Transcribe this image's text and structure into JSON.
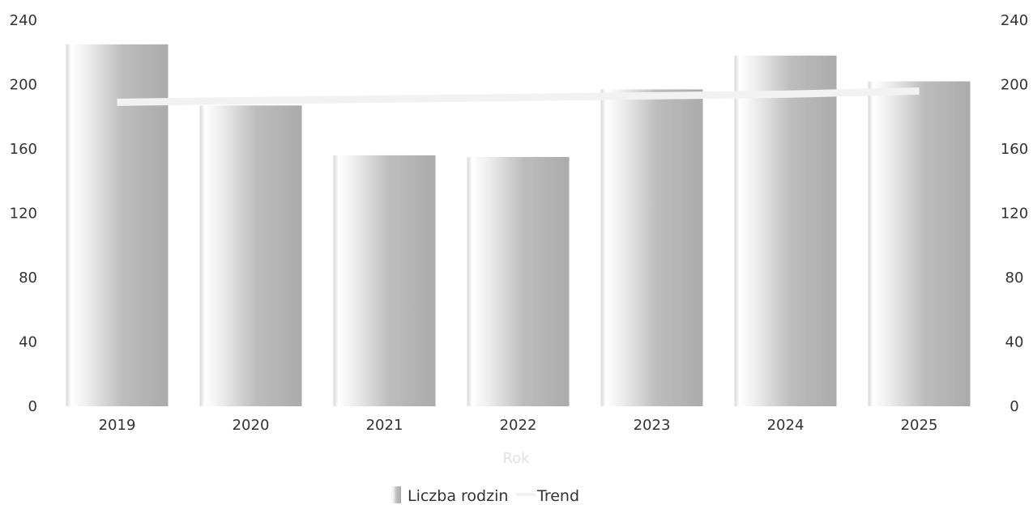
{
  "chart_data": {
    "type": "bar",
    "categories": [
      "2019",
      "2020",
      "2021",
      "2022",
      "2023",
      "2024",
      "2025"
    ],
    "series": [
      {
        "name": "Liczba rodzin",
        "type": "bar",
        "values": [
          225,
          187,
          156,
          155,
          197,
          218,
          202
        ]
      },
      {
        "name": "Trend",
        "type": "line",
        "values": [
          189,
          190,
          191,
          192,
          193,
          194,
          196
        ]
      }
    ],
    "xlabel": "Rok",
    "ylabel": "",
    "ylim": [
      0,
      240
    ],
    "yticks": [
      "0",
      "40",
      "80",
      "120",
      "160",
      "200",
      "240"
    ],
    "y2ticks": [
      "0",
      "40",
      "80",
      "120",
      "160",
      "200",
      "240"
    ],
    "grid": false,
    "legend_position": "bottom-center",
    "colors": {
      "bar_light": "#ffffff",
      "bar_mid": "#c4c4c4",
      "bar_dark": "#a9a9a9",
      "trend_line": "#f2f2f2",
      "text": "#333333",
      "axis_title": "#e2e2e2"
    }
  }
}
